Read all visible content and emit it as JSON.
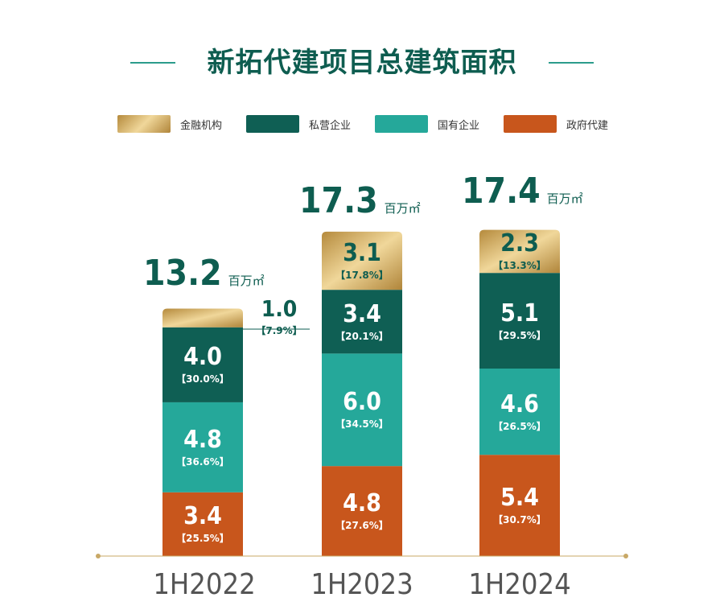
{
  "title": "新拓代建项目总建筑面积",
  "colors": {
    "金融机构": "#c9a352",
    "私营企业": "#0f5f54",
    "国有企业": "#25a89a",
    "政府代建": "#c8561c",
    "title": "#0e5d50",
    "axis": "#c8a866"
  },
  "chart_data": {
    "type": "bar",
    "stacked": true,
    "title": "新拓代建项目总建筑面积",
    "categories": [
      "1H2022",
      "1H2023",
      "1H2024"
    ],
    "legend": [
      "金融机构",
      "私营企业",
      "国有企业",
      "政府代建"
    ],
    "legend_position": "top",
    "unit": "百万㎡",
    "totals": [
      "13.2",
      "17.3",
      "17.4"
    ],
    "series": [
      {
        "name": "政府代建",
        "values": [
          3.4,
          4.8,
          5.4
        ],
        "labels": [
          "3.4",
          "4.8",
          "5.4"
        ],
        "pct": [
          "【25.5%】",
          "【27.6%】",
          "【30.7%】"
        ]
      },
      {
        "name": "国有企业",
        "values": [
          4.8,
          6.0,
          4.6
        ],
        "labels": [
          "4.8",
          "6.0",
          "4.6"
        ],
        "pct": [
          "【36.6%】",
          "【34.5%】",
          "【26.5%】"
        ]
      },
      {
        "name": "私营企业",
        "values": [
          4.0,
          3.4,
          5.1
        ],
        "labels": [
          "4.0",
          "3.4",
          "5.1"
        ],
        "pct": [
          "【30.0%】",
          "【20.1%】",
          "【29.5%】"
        ]
      },
      {
        "name": "金融机构",
        "values": [
          1.0,
          3.1,
          2.3
        ],
        "labels": [
          "1.0",
          "3.1",
          "2.3"
        ],
        "pct": [
          "【7.9%】",
          "【17.8%】",
          "【13.3%】"
        ]
      }
    ],
    "grid": false
  }
}
